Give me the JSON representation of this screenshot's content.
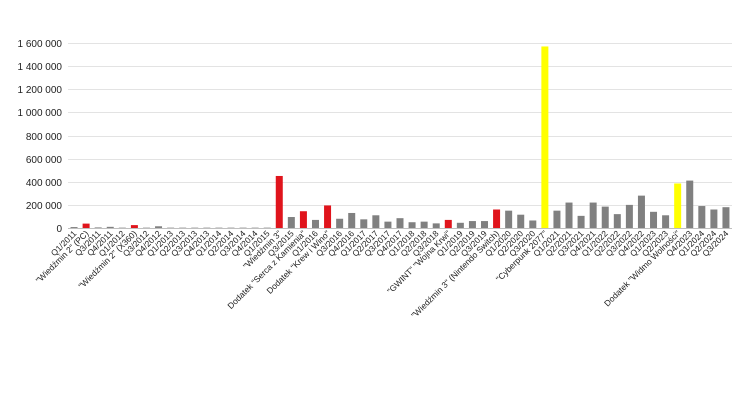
{
  "chart_data": {
    "type": "bar",
    "title": "",
    "xlabel": "",
    "ylabel": "",
    "ylim": [
      0,
      1600000
    ],
    "yticks": [
      0,
      200000,
      400000,
      600000,
      800000,
      1000000,
      1200000,
      1400000,
      1600000
    ],
    "ytick_labels": [
      "0",
      "200 000",
      "400 000",
      "600 000",
      "800 000",
      "1 000 000",
      "1 200 000",
      "1 400 000",
      "1 600 000"
    ],
    "grid": true,
    "legend": "none",
    "colors": {
      "default": "#808080",
      "red": "#e0141c",
      "yellow": "#ffff00"
    },
    "categories": [
      "Q1/2011",
      "\"Wiedźmin 2\" (PC)",
      "Q3/2011",
      "Q4/2011",
      "Q1/2012",
      "\"Wiedźmin 2\" (X360)",
      "Q3/2012",
      "Q4/2012",
      "Q1/2013",
      "Q2/2013",
      "Q3/2013",
      "Q4/2013",
      "Q1/2014",
      "Q2/2014",
      "Q3/2014",
      "Q4/2014",
      "Q1/2015",
      "\"Wiedźmin 3\"",
      "Q3/2015",
      "Dodatek \"Serca z Kamienia\"",
      "Q1/2016",
      "Dodatek \"Krew i Wino\"",
      "Q3/2016",
      "Q4/2016",
      "Q1/2017",
      "Q2/2017",
      "Q3/2017",
      "Q4/2017",
      "Q1/2018",
      "Q2/2018",
      "Q3/2018",
      "\"GWINT\" \"Wojna Krwi\"",
      "Q1/2019",
      "Q2/2019",
      "Q3/2019",
      "\"Wiedźmin 3\" (Nintendo Switch)",
      "Q1/2020",
      "Q2/2020",
      "Q3/2020",
      "\"Cyberpunk 2077\"",
      "Q1/2021",
      "Q2/2021",
      "Q3/2021",
      "Q4/2021",
      "Q1/2022",
      "Q2/2022",
      "Q3/2022",
      "Q4/2022",
      "Q1/2023",
      "Q2/2023",
      "Dodatek \"Widmo Wolności\"",
      "Q4/2023",
      "Q1/2024",
      "Q2/2024",
      "Q3/2024"
    ],
    "values": [
      8000,
      38000,
      5000,
      10000,
      3000,
      25000,
      3000,
      15000,
      3000,
      3000,
      3000,
      3000,
      3000,
      3000,
      3000,
      3000,
      3000,
      450000,
      95000,
      145000,
      70000,
      195000,
      80000,
      130000,
      75000,
      110000,
      55000,
      85000,
      50000,
      55000,
      40000,
      70000,
      45000,
      60000,
      60000,
      160000,
      150000,
      115000,
      65000,
      1570000,
      150000,
      220000,
      105000,
      220000,
      185000,
      120000,
      200000,
      280000,
      140000,
      110000,
      385000,
      410000,
      190000,
      160000,
      180000
    ],
    "bar_colors": [
      "default",
      "red",
      "default",
      "default",
      "default",
      "red",
      "default",
      "default",
      "default",
      "default",
      "default",
      "default",
      "default",
      "default",
      "default",
      "default",
      "default",
      "red",
      "default",
      "red",
      "default",
      "red",
      "default",
      "default",
      "default",
      "default",
      "default",
      "default",
      "default",
      "default",
      "default",
      "red",
      "default",
      "default",
      "default",
      "red",
      "default",
      "default",
      "default",
      "yellow",
      "default",
      "default",
      "default",
      "default",
      "default",
      "default",
      "default",
      "default",
      "default",
      "default",
      "yellow",
      "default",
      "default",
      "default",
      "default"
    ]
  }
}
